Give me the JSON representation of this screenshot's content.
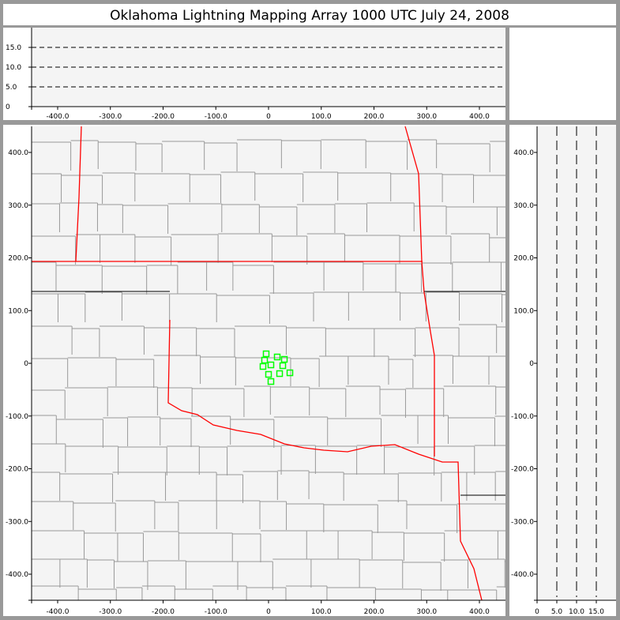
{
  "title": "Oklahoma Lightning Mapping Array   1000 UTC  July 24, 2008",
  "colors": {
    "background": "#f4f4f4",
    "frame": "#999999",
    "state_border": "#ff0000",
    "county_border": "#999999",
    "station": "#00ff00"
  },
  "chart_data": [
    {
      "type": "line",
      "panel": "altitude-vs-east-west",
      "xlim": [
        -460,
        450
      ],
      "ylim": [
        0,
        20
      ],
      "xticks": [
        "-400.0",
        "-300.0",
        "-200.0",
        "-100.0",
        "0",
        "100.0",
        "200.0",
        "300.0",
        "400.0"
      ],
      "xtick_values": [
        -400,
        -300,
        -200,
        -100,
        0,
        100,
        200,
        300,
        400
      ],
      "yticks": [
        "0",
        "5.0",
        "10.0",
        "15.0"
      ],
      "ytick_values": [
        0,
        5,
        10,
        15
      ],
      "dashed_levels": [
        5,
        10,
        15
      ]
    },
    {
      "type": "scatter",
      "panel": "plan-view-map",
      "xlim": [
        -450,
        450
      ],
      "ylim": [
        -450,
        450
      ],
      "xticks": [
        "-400.0",
        "-300.0",
        "-200.0",
        "-100.0",
        "0",
        "100.0",
        "200.0",
        "300.0",
        "400.0"
      ],
      "xtick_values": [
        -400,
        -300,
        -200,
        -100,
        0,
        100,
        200,
        300,
        400
      ],
      "yticks": [
        "-400.0",
        "-300.0",
        "-200.0",
        "-100.0",
        "0",
        "100.0",
        "200.0",
        "300.0",
        "400.0"
      ],
      "ytick_values": [
        -400,
        -300,
        -200,
        -100,
        0,
        100,
        200,
        300,
        400
      ],
      "stations": [
        [
          -4.5,
          18
        ],
        [
          -7.5,
          6
        ],
        [
          16.5,
          12
        ],
        [
          30,
          7.5
        ],
        [
          -10.5,
          -6
        ],
        [
          4.5,
          -3
        ],
        [
          27,
          -4.5
        ],
        [
          0,
          -21
        ],
        [
          21,
          -19.5
        ],
        [
          40.5,
          -18
        ],
        [
          4.5,
          -34.5
        ]
      ],
      "marker": "hollow-square"
    },
    {
      "type": "line",
      "panel": "north-south-vs-altitude",
      "xlim": [
        0,
        20
      ],
      "ylim": [
        -450,
        450
      ],
      "xticks": [
        "0",
        "5.0",
        "10.0",
        "15.0"
      ],
      "xtick_values": [
        0,
        5,
        10,
        15
      ],
      "yticks": [
        "-400.0",
        "-300.0",
        "-200.0",
        "-100.0",
        "0",
        "100.0",
        "200.0",
        "300.0",
        "400.0"
      ],
      "ytick_values": [
        -400,
        -300,
        -200,
        -100,
        0,
        100,
        200,
        300,
        400
      ],
      "dashed_levels": [
        5,
        10,
        15
      ]
    }
  ]
}
